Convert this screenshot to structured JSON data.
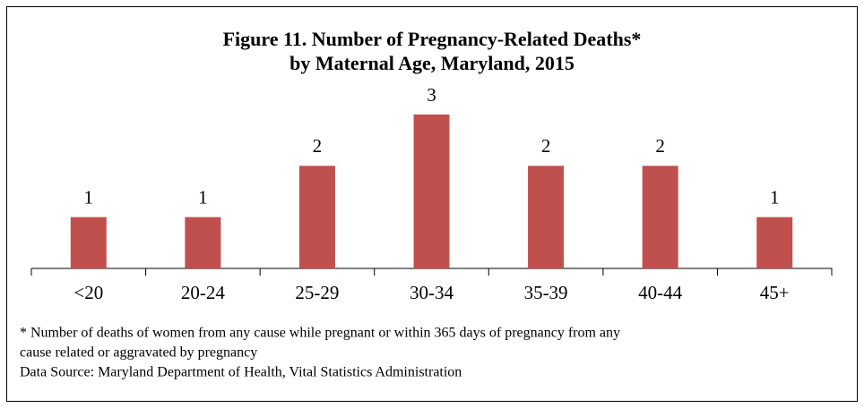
{
  "chart_data": {
    "type": "bar",
    "title": "Figure 11. Number of Pregnancy-Related Deaths*",
    "subtitle": "by Maternal Age, Maryland, 2015",
    "categories": [
      "<20",
      "20-24",
      "25-29",
      "30-34",
      "35-39",
      "40-44",
      "45+"
    ],
    "values": [
      1,
      1,
      2,
      3,
      2,
      2,
      1
    ],
    "color": "#c0504d",
    "notes": [
      "* Number of deaths of women from any cause while pregnant or within 365 days of pregnancy from any",
      "cause related or aggravated by pregnancy"
    ],
    "source": "Data Source: Maryland Department of Health, Vital Statistics Administration"
  }
}
